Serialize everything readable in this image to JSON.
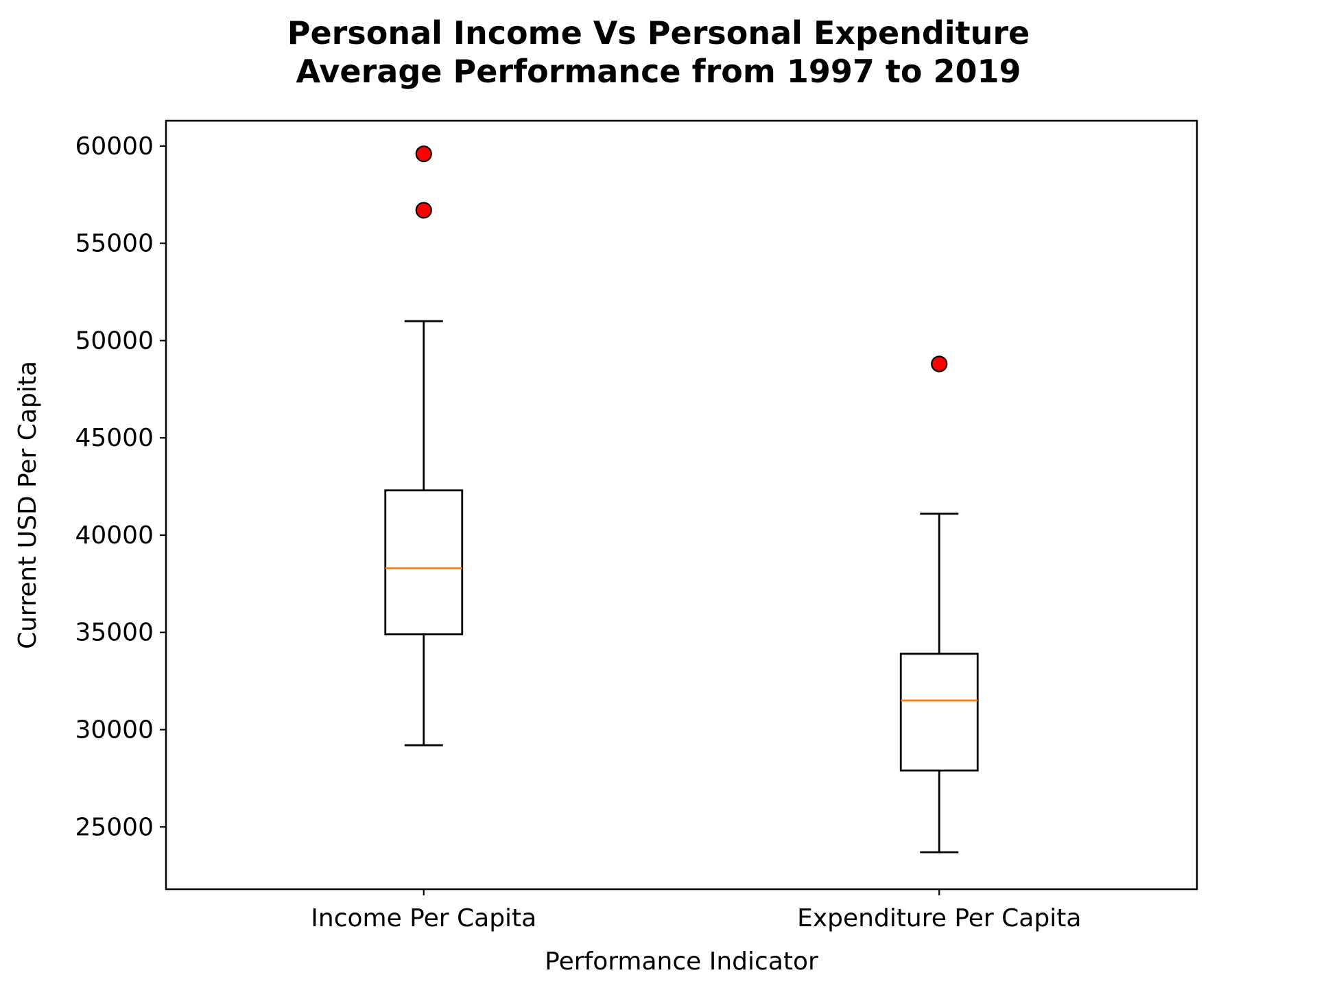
{
  "chart_data": {
    "type": "box",
    "title_lines": [
      "Personal Income Vs Personal Expenditure",
      "Average Performance from 1997 to 2019"
    ],
    "xlabel": "Performance Indicator",
    "ylabel": "Current USD Per Capita",
    "categories": [
      "Income Per Capita",
      "Expenditure Per Capita"
    ],
    "ylim": [
      21800,
      61300
    ],
    "yticks": [
      25000,
      30000,
      35000,
      40000,
      45000,
      50000,
      55000,
      60000
    ],
    "boxes": [
      {
        "whisker_low": 29200,
        "q1": 34900,
        "median": 38300,
        "q3": 42300,
        "whisker_high": 51000,
        "outliers": [
          56700,
          59600
        ]
      },
      {
        "whisker_low": 23700,
        "q1": 27900,
        "median": 31500,
        "q3": 33900,
        "whisker_high": 41100,
        "outliers": [
          48800
        ]
      }
    ],
    "colors": {
      "box": "#000000",
      "median": "#ff7f0e",
      "outlier_fill": "#ff0000",
      "outlier_edge": "#000000"
    },
    "grid": false,
    "legend": "none"
  }
}
